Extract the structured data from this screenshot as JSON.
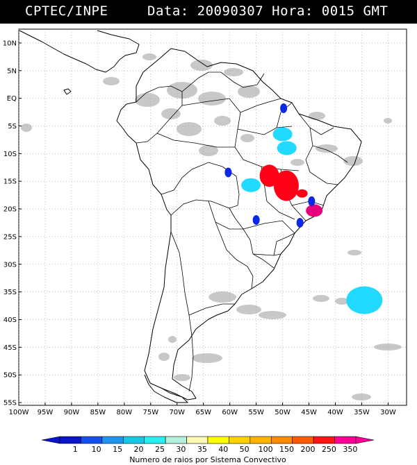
{
  "header": {
    "agency": "CPTEC/INPE",
    "data_label": "Data:",
    "date": "20090307",
    "hora_label": "Hora:",
    "time": "0015",
    "tz": "GMT"
  },
  "map": {
    "lat_labels": [
      "10N",
      "5N",
      "EQ",
      "5S",
      "10S",
      "15S",
      "20S",
      "25S",
      "30S",
      "35S",
      "40S",
      "45S",
      "50S",
      "55S"
    ],
    "lon_labels": [
      "100W",
      "95W",
      "90W",
      "85W",
      "80W",
      "75W",
      "70W",
      "65W",
      "60W",
      "55W",
      "50W",
      "45W",
      "40W",
      "35W",
      "30W"
    ],
    "lat_values": [
      10,
      5,
      0,
      -5,
      -10,
      -15,
      -20,
      -25,
      -30,
      -35,
      -40,
      -45,
      -50,
      -55
    ],
    "lon_values": [
      -100,
      -95,
      -90,
      -85,
      -80,
      -75,
      -70,
      -65,
      -60,
      -55,
      -50,
      -45,
      -40,
      -35,
      -30
    ],
    "lat_range": [
      -55.5,
      12.5
    ],
    "lon_range": [
      -100,
      -26.5
    ],
    "grid": "dotted",
    "colors": {
      "cloud_gray": "#c8c8c8",
      "coastline": "#000000"
    },
    "convective_systems": [
      {
        "color": "#0a28e6",
        "lon": -49.8,
        "lat": -1.8,
        "class": "1"
      },
      {
        "color": "#22d9ff",
        "lon": -50.0,
        "lat": -6.5,
        "class": "20"
      },
      {
        "color": "#22d9ff",
        "lon": -49.2,
        "lat": -9.0,
        "class": "20"
      },
      {
        "color": "#ff0016",
        "lon": -52.5,
        "lat": -14.0,
        "class": "250"
      },
      {
        "color": "#ff0016",
        "lon": -49.3,
        "lat": -15.8,
        "class": "250"
      },
      {
        "color": "#ff0016",
        "lon": -46.3,
        "lat": -17.2,
        "class": "250"
      },
      {
        "color": "#22d9ff",
        "lon": -56.0,
        "lat": -15.7,
        "class": "20"
      },
      {
        "color": "#e6007e",
        "lon": -44.0,
        "lat": -20.3,
        "class": "350"
      },
      {
        "color": "#0a28e6",
        "lon": -60.3,
        "lat": -13.4,
        "class": "1"
      },
      {
        "color": "#0a28e6",
        "lon": -46.7,
        "lat": -22.5,
        "class": "1"
      },
      {
        "color": "#0a28e6",
        "lon": -55.0,
        "lat": -22.0,
        "class": "1"
      },
      {
        "color": "#0a28e6",
        "lon": -44.5,
        "lat": -18.6,
        "class": "1"
      },
      {
        "color": "#22d9ff",
        "lon": -34.5,
        "lat": -36.5,
        "class": "20"
      }
    ]
  },
  "legend": {
    "labels": [
      "1",
      "10",
      "15",
      "20",
      "25",
      "30",
      "35",
      "40",
      "50",
      "100",
      "150",
      "200",
      "250",
      "350"
    ],
    "colors": [
      "#0a14c8",
      "#1450f0",
      "#1e96f0",
      "#14c8e6",
      "#28f0f0",
      "#b4f0dc",
      "#fafab4",
      "#ffff00",
      "#ffd200",
      "#ffb400",
      "#ff8c00",
      "#ff5a00",
      "#ff1414",
      "#ff0096"
    ],
    "title": "Numero de raios por Sistema Convectivo"
  }
}
